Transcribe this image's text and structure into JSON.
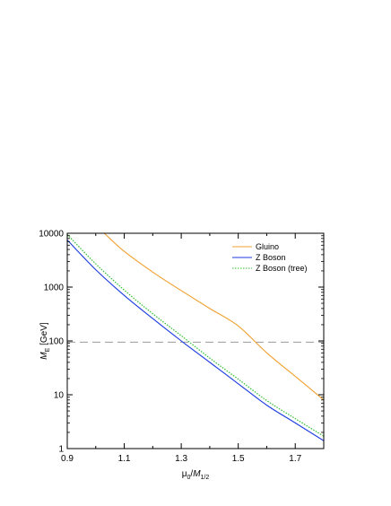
{
  "chart_data": {
    "type": "line",
    "xlabel_main": "μ",
    "xlabel_main_sub": "0",
    "xlabel_sep": "/",
    "xlabel_var": "M",
    "xlabel_var_sub": "1/2",
    "ylabel_var": "M",
    "ylabel_sub": "E",
    "ylabel_unit": " [GeV]",
    "xlim": [
      0.9,
      1.8
    ],
    "ylim": [
      1,
      10000
    ],
    "yscale": "log",
    "x_ticks": [
      0.9,
      1.1,
      1.3,
      1.5,
      1.7
    ],
    "x_tick_labels": [
      "0.9",
      "1.1",
      "1.3",
      "1.5",
      "1.7"
    ],
    "y_ticks": [
      1,
      10,
      100,
      1000,
      10000
    ],
    "y_tick_labels": [
      "1",
      "10",
      "100",
      "1000",
      "10000"
    ],
    "reference_line": {
      "y": 95,
      "style": "dashed",
      "color": "#999999"
    },
    "legend_position": "top-right",
    "series": [
      {
        "name": "Gluino",
        "color": "#f0a030",
        "style": "solid",
        "x": [
          1.03,
          1.1,
          1.2,
          1.3,
          1.4,
          1.5,
          1.6,
          1.7,
          1.8
        ],
        "y": [
          10000,
          4600,
          1900,
          860,
          400,
          190,
          60,
          22,
          8
        ]
      },
      {
        "name": "Z Boson",
        "color": "#1a3adf",
        "style": "solid",
        "x": [
          0.9,
          1.0,
          1.1,
          1.2,
          1.3,
          1.4,
          1.5,
          1.6,
          1.7,
          1.8
        ],
        "y": [
          7500,
          2100,
          700,
          260,
          100,
          40,
          16,
          6.4,
          3.0,
          1.4
        ]
      },
      {
        "name": "Z Boson (tree)",
        "color": "#2fbf2f",
        "style": "dotted",
        "x": [
          0.9,
          1.0,
          1.1,
          1.2,
          1.3,
          1.4,
          1.5,
          1.6,
          1.7,
          1.8
        ],
        "y": [
          9500,
          2700,
          880,
          320,
          125,
          48,
          19.5,
          7.8,
          3.6,
          1.7
        ]
      }
    ]
  }
}
